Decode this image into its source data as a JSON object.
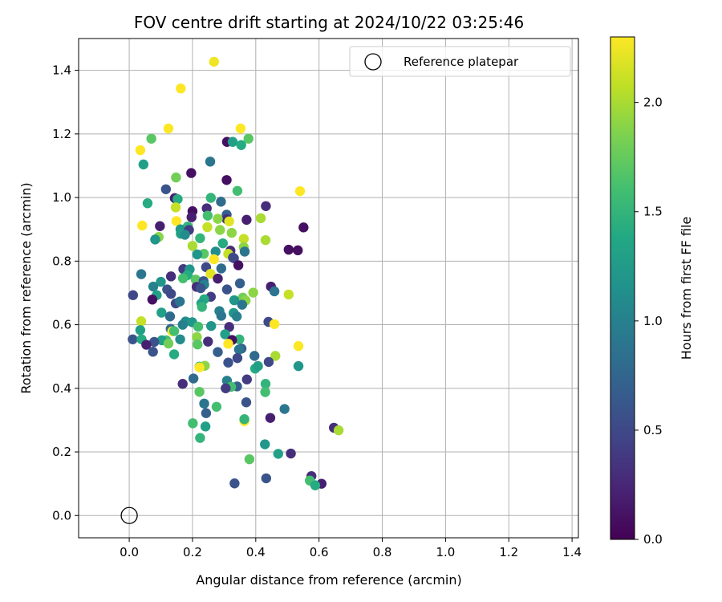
{
  "chart_data": {
    "type": "scatter",
    "title": "FOV centre drift starting at 2024/10/22 03:25:46",
    "xlabel": "Angular distance from reference (arcmin)",
    "ylabel": "Rotation from reference (arcmin)",
    "xlim": [
      -0.16,
      1.42
    ],
    "ylim": [
      -0.07,
      1.5
    ],
    "xticks": [
      0.0,
      0.2,
      0.4,
      0.6,
      0.8,
      1.0,
      1.2,
      1.4
    ],
    "yticks": [
      0.0,
      0.2,
      0.4,
      0.6,
      0.8,
      1.0,
      1.2,
      1.4
    ],
    "xtick_labels": [
      "0.0",
      "0.2",
      "0.4",
      "0.6",
      "0.8",
      "1.0",
      "1.2",
      "1.4"
    ],
    "ytick_labels": [
      "0.0",
      "0.2",
      "0.4",
      "0.6",
      "0.8",
      "1.0",
      "1.2",
      "1.4"
    ],
    "grid": true,
    "colormap": "viridis",
    "colorbar": {
      "label": "Hours from first FF file",
      "min": 0.0,
      "max": 2.3,
      "ticks": [
        0.0,
        0.5,
        1.0,
        1.5,
        2.0
      ],
      "tick_labels": [
        "0.0",
        "0.5",
        "1.0",
        "1.5",
        "2.0"
      ]
    },
    "reference": {
      "x": 0.0,
      "y": 0.0,
      "legend_label": "Reference platepar"
    },
    "legend_position": "upper-right",
    "points": [
      [
        0.268,
        1.427,
        2.25
      ],
      [
        0.163,
        1.343,
        2.3
      ],
      [
        0.124,
        1.217,
        2.3
      ],
      [
        0.352,
        1.217,
        2.3
      ],
      [
        0.035,
        1.149,
        2.3
      ],
      [
        0.07,
        1.185,
        1.7
      ],
      [
        0.377,
        1.185,
        1.7
      ],
      [
        0.045,
        1.104,
        1.3
      ],
      [
        0.309,
        1.175,
        0.1
      ],
      [
        0.327,
        1.175,
        1.3
      ],
      [
        0.354,
        1.165,
        1.4
      ],
      [
        0.256,
        1.113,
        0.9
      ],
      [
        0.196,
        1.077,
        0.1
      ],
      [
        0.148,
        1.063,
        1.8
      ],
      [
        0.308,
        1.055,
        0.1
      ],
      [
        0.54,
        1.02,
        2.3
      ],
      [
        0.342,
        1.021,
        1.6
      ],
      [
        0.116,
        1.026,
        0.6
      ],
      [
        0.258,
        0.999,
        1.5
      ],
      [
        0.144,
        0.998,
        0.2
      ],
      [
        0.153,
        0.995,
        1.4
      ],
      [
        0.29,
        0.987,
        0.8
      ],
      [
        0.058,
        0.982,
        1.4
      ],
      [
        0.147,
        0.969,
        2.1
      ],
      [
        0.432,
        0.973,
        0.3
      ],
      [
        0.2,
        0.957,
        0.1
      ],
      [
        0.245,
        0.966,
        0.3
      ],
      [
        0.308,
        0.946,
        0.7
      ],
      [
        0.248,
        0.943,
        1.6
      ],
      [
        0.197,
        0.938,
        0.2
      ],
      [
        0.308,
        0.932,
        0.3
      ],
      [
        0.416,
        0.935,
        2.0
      ],
      [
        0.149,
        0.926,
        2.3
      ],
      [
        0.371,
        0.93,
        0.2
      ],
      [
        0.28,
        0.933,
        1.9
      ],
      [
        0.316,
        0.925,
        2.2
      ],
      [
        0.041,
        0.912,
        2.3
      ],
      [
        0.097,
        0.91,
        0.2
      ],
      [
        0.551,
        0.906,
        0.1
      ],
      [
        0.247,
        0.907,
        2.1
      ],
      [
        0.185,
        0.909,
        1.5
      ],
      [
        0.287,
        0.898,
        1.9
      ],
      [
        0.162,
        0.9,
        1.2
      ],
      [
        0.189,
        0.898,
        0.4
      ],
      [
        0.324,
        0.889,
        1.9
      ],
      [
        0.093,
        0.876,
        1.9
      ],
      [
        0.163,
        0.886,
        1.3
      ],
      [
        0.176,
        0.883,
        1.1
      ],
      [
        0.362,
        0.87,
        2.1
      ],
      [
        0.082,
        0.868,
        1.2
      ],
      [
        0.431,
        0.866,
        2.0
      ],
      [
        0.224,
        0.872,
        1.5
      ],
      [
        0.296,
        0.856,
        1.4
      ],
      [
        0.2,
        0.848,
        2.0
      ],
      [
        0.362,
        0.844,
        1.9
      ],
      [
        0.533,
        0.834,
        0.1
      ],
      [
        0.504,
        0.836,
        0.1
      ],
      [
        0.365,
        0.83,
        0.9
      ],
      [
        0.273,
        0.83,
        1.1
      ],
      [
        0.32,
        0.833,
        0.3
      ],
      [
        0.236,
        0.823,
        1.7
      ],
      [
        0.215,
        0.821,
        1.2
      ],
      [
        0.331,
        0.809,
        0.6
      ],
      [
        0.313,
        0.823,
        2.1
      ],
      [
        0.268,
        0.806,
        2.3
      ],
      [
        0.328,
        0.811,
        0.5
      ],
      [
        0.345,
        0.787,
        0.1
      ],
      [
        0.171,
        0.775,
        0.4
      ],
      [
        0.191,
        0.774,
        1.2
      ],
      [
        0.243,
        0.781,
        0.5
      ],
      [
        0.291,
        0.777,
        0.8
      ],
      [
        0.257,
        0.76,
        2.2
      ],
      [
        0.184,
        0.756,
        1.4
      ],
      [
        0.038,
        0.759,
        0.9
      ],
      [
        0.28,
        0.745,
        0.2
      ],
      [
        0.132,
        0.752,
        0.3
      ],
      [
        0.1,
        0.735,
        1.2
      ],
      [
        0.17,
        0.746,
        1.6
      ],
      [
        0.21,
        0.742,
        1.7
      ],
      [
        0.235,
        0.737,
        0.6
      ],
      [
        0.237,
        0.726,
        1.0
      ],
      [
        0.35,
        0.73,
        0.7
      ],
      [
        0.213,
        0.719,
        0.3
      ],
      [
        0.448,
        0.72,
        0.2
      ],
      [
        0.076,
        0.72,
        1.0
      ],
      [
        0.392,
        0.701,
        1.9
      ],
      [
        0.459,
        0.705,
        0.9
      ],
      [
        0.226,
        0.715,
        0.6
      ],
      [
        0.309,
        0.711,
        0.6
      ],
      [
        0.12,
        0.711,
        0.6
      ],
      [
        0.087,
        0.693,
        1.3
      ],
      [
        0.012,
        0.693,
        0.5
      ],
      [
        0.504,
        0.695,
        2.1
      ],
      [
        0.132,
        0.697,
        0.5
      ],
      [
        0.258,
        0.688,
        0.4
      ],
      [
        0.073,
        0.679,
        0.1
      ],
      [
        0.359,
        0.685,
        1.8
      ],
      [
        0.237,
        0.68,
        1.4
      ],
      [
        0.147,
        0.667,
        0.5
      ],
      [
        0.16,
        0.673,
        0.9
      ],
      [
        0.332,
        0.677,
        1.2
      ],
      [
        0.368,
        0.676,
        1.9
      ],
      [
        0.228,
        0.667,
        1.3
      ],
      [
        0.357,
        0.663,
        0.9
      ],
      [
        0.23,
        0.656,
        1.5
      ],
      [
        0.285,
        0.643,
        1.0
      ],
      [
        0.33,
        0.637,
        1.2
      ],
      [
        0.102,
        0.638,
        1.3
      ],
      [
        0.291,
        0.628,
        0.9
      ],
      [
        0.129,
        0.626,
        0.8
      ],
      [
        0.34,
        0.626,
        1.0
      ],
      [
        0.038,
        0.611,
        2.1
      ],
      [
        0.44,
        0.609,
        0.5
      ],
      [
        0.459,
        0.602,
        2.3
      ],
      [
        0.178,
        0.61,
        1.1
      ],
      [
        0.199,
        0.608,
        1.2
      ],
      [
        0.169,
        0.6,
        1.0
      ],
      [
        0.218,
        0.594,
        1.6
      ],
      [
        0.259,
        0.596,
        1.2
      ],
      [
        0.316,
        0.593,
        0.3
      ],
      [
        0.035,
        0.583,
        1.3
      ],
      [
        0.131,
        0.587,
        0.8
      ],
      [
        0.136,
        0.579,
        2.3
      ],
      [
        0.142,
        0.58,
        1.6
      ],
      [
        0.303,
        0.57,
        1.3
      ],
      [
        0.214,
        0.561,
        1.9
      ],
      [
        0.348,
        0.554,
        1.5
      ],
      [
        0.325,
        0.552,
        0.1
      ],
      [
        0.161,
        0.554,
        1.1
      ],
      [
        0.117,
        0.551,
        1.6
      ],
      [
        0.103,
        0.551,
        1.3
      ],
      [
        0.011,
        0.554,
        0.6
      ],
      [
        0.039,
        0.554,
        1.4
      ],
      [
        0.079,
        0.546,
        0.6
      ],
      [
        0.216,
        0.538,
        1.7
      ],
      [
        0.249,
        0.547,
        0.3
      ],
      [
        0.124,
        0.541,
        1.8
      ],
      [
        0.313,
        0.54,
        2.3
      ],
      [
        0.535,
        0.533,
        2.3
      ],
      [
        0.054,
        0.537,
        0.2
      ],
      [
        0.355,
        0.525,
        0.7
      ],
      [
        0.347,
        0.522,
        0.9
      ],
      [
        0.075,
        0.515,
        0.6
      ],
      [
        0.142,
        0.507,
        1.4
      ],
      [
        0.28,
        0.514,
        0.7
      ],
      [
        0.462,
        0.502,
        2.0
      ],
      [
        0.396,
        0.502,
        0.8
      ],
      [
        0.342,
        0.495,
        0.5
      ],
      [
        0.441,
        0.483,
        0.5
      ],
      [
        0.313,
        0.481,
        0.6
      ],
      [
        0.222,
        0.468,
        1.3
      ],
      [
        0.239,
        0.471,
        1.9
      ],
      [
        0.222,
        0.466,
        2.3
      ],
      [
        0.398,
        0.462,
        1.4
      ],
      [
        0.535,
        0.47,
        1.2
      ],
      [
        0.407,
        0.47,
        1.3
      ],
      [
        0.203,
        0.431,
        0.8
      ],
      [
        0.309,
        0.424,
        1.0
      ],
      [
        0.372,
        0.428,
        0.4
      ],
      [
        0.169,
        0.414,
        0.3
      ],
      [
        0.431,
        0.414,
        1.5
      ],
      [
        0.341,
        0.406,
        0.7
      ],
      [
        0.322,
        0.405,
        1.6
      ],
      [
        0.305,
        0.4,
        0.4
      ],
      [
        0.43,
        0.388,
        1.6
      ],
      [
        0.222,
        0.389,
        1.7
      ],
      [
        0.37,
        0.356,
        0.6
      ],
      [
        0.237,
        0.352,
        0.9
      ],
      [
        0.276,
        0.342,
        1.6
      ],
      [
        0.491,
        0.335,
        0.9
      ],
      [
        0.243,
        0.322,
        0.7
      ],
      [
        0.446,
        0.307,
        0.2
      ],
      [
        0.364,
        0.297,
        2.3
      ],
      [
        0.364,
        0.303,
        1.5
      ],
      [
        0.201,
        0.29,
        1.6
      ],
      [
        0.241,
        0.28,
        1.3
      ],
      [
        0.647,
        0.276,
        0.3
      ],
      [
        0.662,
        0.268,
        2.0
      ],
      [
        0.224,
        0.244,
        1.5
      ],
      [
        0.429,
        0.224,
        1.2
      ],
      [
        0.471,
        0.194,
        1.3
      ],
      [
        0.511,
        0.195,
        0.3
      ],
      [
        0.38,
        0.177,
        1.7
      ],
      [
        0.576,
        0.124,
        0.3
      ],
      [
        0.571,
        0.11,
        1.6
      ],
      [
        0.608,
        0.1,
        0.2
      ],
      [
        0.588,
        0.095,
        1.4
      ],
      [
        0.433,
        0.117,
        0.6
      ],
      [
        0.333,
        0.101,
        0.6
      ]
    ]
  }
}
